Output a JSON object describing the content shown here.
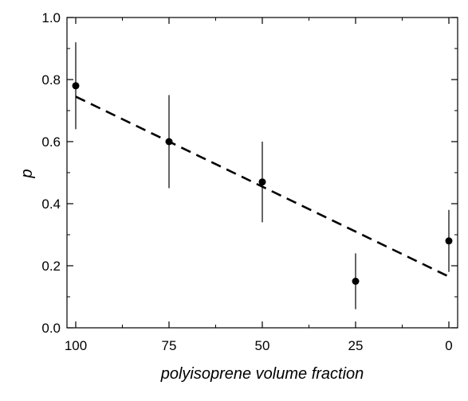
{
  "chart_data": {
    "type": "scatter",
    "xlabel": "polyisoprene volume fraction",
    "ylabel": "p",
    "xlim": [
      100,
      0
    ],
    "ylim": [
      0.0,
      1.0
    ],
    "x_ticks": [
      "100",
      "75",
      "50",
      "25",
      "0"
    ],
    "x_tick_values": [
      100,
      75,
      50,
      25,
      0
    ],
    "y_ticks": [
      "0.0",
      "0.2",
      "0.4",
      "0.6",
      "0.8",
      "1.0"
    ],
    "y_tick_values": [
      0.0,
      0.2,
      0.4,
      0.6,
      0.8,
      1.0
    ],
    "grid": false,
    "series": [
      {
        "x": [
          100,
          75,
          50,
          25,
          0
        ],
        "y": [
          0.78,
          0.6,
          0.47,
          0.15,
          0.28
        ],
        "error_low": [
          0.64,
          0.45,
          0.34,
          0.06,
          0.18
        ],
        "error_high": [
          0.92,
          0.75,
          0.6,
          0.24,
          0.38
        ],
        "marker": "circle",
        "color": "#000000"
      }
    ],
    "fit_line": {
      "style": "dashed",
      "color": "#000000",
      "x": [
        100,
        0
      ],
      "y": [
        0.745,
        0.165
      ]
    }
  }
}
